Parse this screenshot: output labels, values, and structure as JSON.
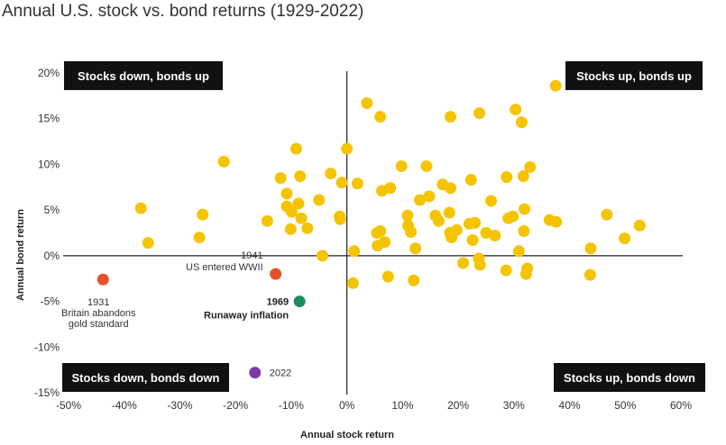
{
  "title": "Annual U.S. stock vs. bond returns (1929-2022)",
  "chart_data": {
    "type": "scatter",
    "title": "Annual U.S. stock vs. bond returns (1929-2022)",
    "xlabel": "Annual stock return",
    "ylabel": "Annual bond return",
    "xlim": [
      -50,
      60
    ],
    "ylim": [
      -15,
      20
    ],
    "xticks": [
      -50,
      -40,
      -30,
      -20,
      -10,
      0,
      10,
      20,
      30,
      40,
      50,
      60
    ],
    "yticks": [
      -15,
      -10,
      -5,
      0,
      5,
      10,
      15,
      20
    ],
    "xtick_labels": [
      "-50%",
      "-40%",
      "-30%",
      "-20%",
      "-10%",
      "0%",
      "10%",
      "20%",
      "30%",
      "40%",
      "50%",
      "60%"
    ],
    "ytick_labels": [
      "-15%",
      "-10%",
      "-5%",
      "0%",
      "5%",
      "10%",
      "15%",
      "20%"
    ],
    "grid": false,
    "quadrant_labels": {
      "top_left": "Stocks down, bonds up",
      "top_right": "Stocks up, bonds up",
      "bottom_left": "Stocks down, bonds down",
      "bottom_right": "Stocks up, bonds down"
    },
    "colors": {
      "default": "#F5C400",
      "1931": "#E8502A",
      "1941": "#E8502A",
      "1969": "#1E8A5E",
      "2022": "#7B3AA8"
    },
    "highlights": [
      {
        "x": -43.8,
        "y": -2.6,
        "label_lines": [
          "1931",
          "Britain abandons",
          "gold standard"
        ],
        "color": "#E8502A"
      },
      {
        "x": -12.8,
        "y": -2.0,
        "label_lines": [
          "1941",
          "US entered WWII"
        ],
        "color": "#E8502A"
      },
      {
        "x": -8.5,
        "y": -5.0,
        "label_lines": [
          "1969",
          "Runaway inflation"
        ],
        "color": "#1E8A5E"
      },
      {
        "x": -16.5,
        "y": -12.8,
        "label_lines": [
          "2022"
        ],
        "color": "#7B3AA8"
      }
    ],
    "points": [
      [
        37.5,
        18.6
      ],
      [
        3.6,
        16.7
      ],
      [
        6.0,
        15.2
      ],
      [
        18.6,
        15.2
      ],
      [
        23.8,
        15.6
      ],
      [
        30.3,
        16.0
      ],
      [
        31.4,
        14.6
      ],
      [
        -22.1,
        10.3
      ],
      [
        -9.1,
        11.7
      ],
      [
        0.0,
        11.7
      ],
      [
        9.8,
        9.8
      ],
      [
        14.3,
        9.8
      ],
      [
        32.9,
        9.7
      ],
      [
        -11.9,
        8.5
      ],
      [
        -8.4,
        8.7
      ],
      [
        -2.9,
        9.0
      ],
      [
        1.9,
        7.9
      ],
      [
        -0.9,
        8.0
      ],
      [
        6.3,
        7.1
      ],
      [
        7.8,
        7.4
      ],
      [
        17.2,
        7.8
      ],
      [
        18.6,
        7.4
      ],
      [
        22.3,
        8.3
      ],
      [
        28.7,
        8.6
      ],
      [
        31.7,
        8.7
      ],
      [
        -10.8,
        6.8
      ],
      [
        -8.7,
        5.7
      ],
      [
        -5.0,
        6.1
      ],
      [
        13.1,
        6.1
      ],
      [
        14.8,
        6.5
      ],
      [
        25.9,
        6.0
      ],
      [
        -37.0,
        5.2
      ],
      [
        -25.9,
        4.5
      ],
      [
        -14.3,
        3.8
      ],
      [
        -10.8,
        5.4
      ],
      [
        -9.9,
        4.8
      ],
      [
        -8.2,
        4.1
      ],
      [
        -7.1,
        3.0
      ],
      [
        -10.1,
        2.9
      ],
      [
        -1.3,
        4.3
      ],
      [
        -1.2,
        4.0
      ],
      [
        10.9,
        4.4
      ],
      [
        15.9,
        4.4
      ],
      [
        16.5,
        3.8
      ],
      [
        18.4,
        4.7
      ],
      [
        22.0,
        3.5
      ],
      [
        23.0,
        3.6
      ],
      [
        29.0,
        4.1
      ],
      [
        29.8,
        4.3
      ],
      [
        31.9,
        5.1
      ],
      [
        36.4,
        3.9
      ],
      [
        37.6,
        3.7
      ],
      [
        46.7,
        4.5
      ],
      [
        -35.7,
        1.4
      ],
      [
        -26.5,
        2.0
      ],
      [
        5.4,
        2.5
      ],
      [
        6.0,
        2.7
      ],
      [
        5.5,
        1.1
      ],
      [
        6.8,
        1.5
      ],
      [
        11.5,
        2.6
      ],
      [
        11.0,
        3.3
      ],
      [
        12.3,
        0.8
      ],
      [
        18.8,
        2.0
      ],
      [
        18.5,
        2.5
      ],
      [
        19.7,
        2.8
      ],
      [
        22.6,
        1.7
      ],
      [
        25.0,
        2.5
      ],
      [
        26.6,
        2.2
      ],
      [
        30.9,
        0.5
      ],
      [
        31.8,
        2.7
      ],
      [
        43.8,
        0.8
      ],
      [
        49.9,
        1.9
      ],
      [
        52.6,
        3.3
      ],
      [
        1.3,
        0.5
      ],
      [
        -4.4,
        0.0
      ],
      [
        1.1,
        -3.0
      ],
      [
        7.4,
        -2.3
      ],
      [
        12.0,
        -2.7
      ],
      [
        20.9,
        -0.8
      ],
      [
        23.7,
        -0.3
      ],
      [
        23.9,
        -1.0
      ],
      [
        28.6,
        -1.6
      ],
      [
        32.4,
        -1.4
      ],
      [
        32.2,
        -2.0
      ],
      [
        43.7,
        -2.1
      ]
    ]
  }
}
